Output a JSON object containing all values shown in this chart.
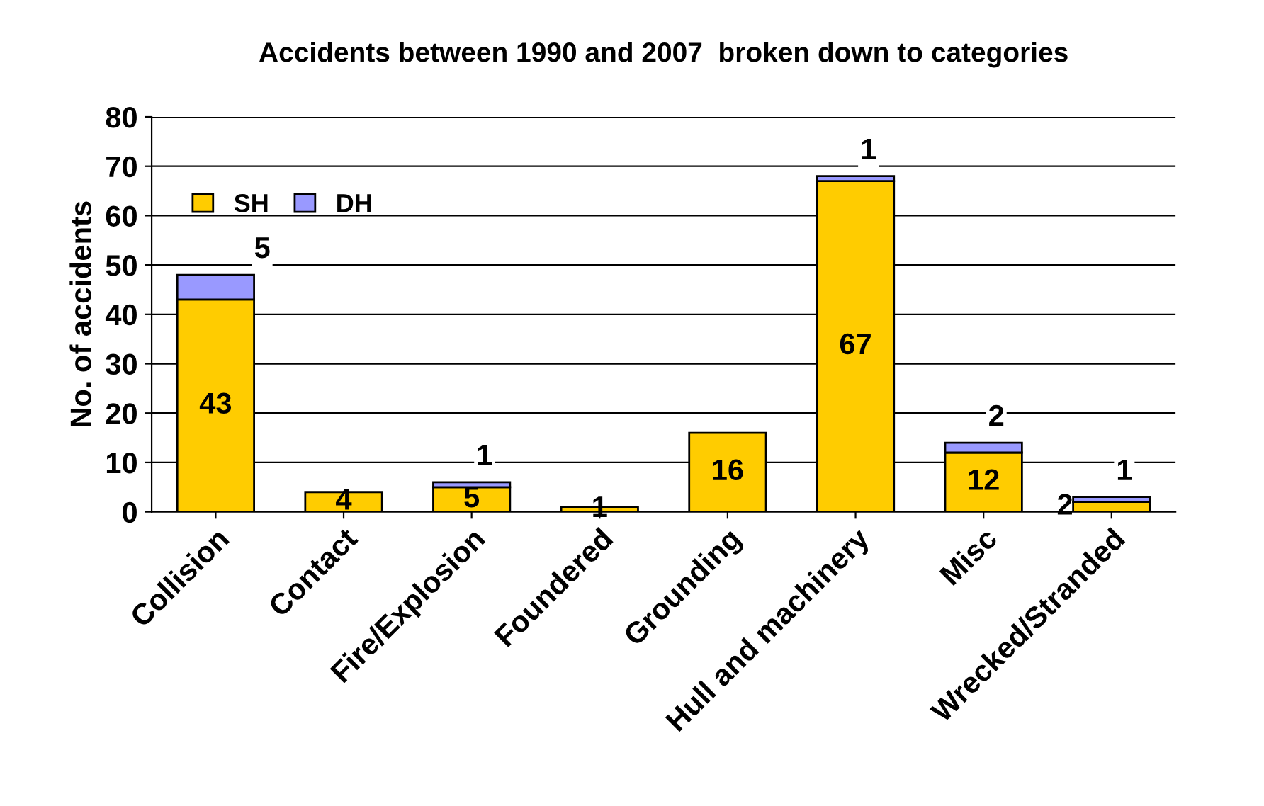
{
  "chart_data": {
    "type": "bar",
    "title": "Accidents between 1990 and 2007  broken down to categories",
    "ylabel": "No. of accidents",
    "categories": [
      "Collision",
      "Contact",
      "Fire/Explosion",
      "Foundered",
      "Grounding",
      "Hull and machinery",
      "Misc",
      "Wrecked/Stranded"
    ],
    "stacked": true,
    "series": [
      {
        "name": "SH",
        "color": "#ffcc00",
        "values": [
          43,
          4,
          5,
          1,
          16,
          67,
          12,
          2
        ],
        "value_labels": [
          "43",
          "4",
          "5",
          "1",
          "16",
          "67",
          "12",
          "2"
        ]
      },
      {
        "name": "DH",
        "color": "#9999ff",
        "values": [
          5,
          0,
          1,
          0,
          0,
          1,
          2,
          1
        ],
        "value_labels": [
          "5",
          null,
          "1",
          null,
          null,
          "1",
          "2",
          "1"
        ]
      }
    ],
    "ylim": [
      0,
      80
    ],
    "yticks": [
      0,
      10,
      20,
      30,
      40,
      50,
      60,
      70,
      80
    ],
    "grid": "y",
    "legend": "top left"
  }
}
